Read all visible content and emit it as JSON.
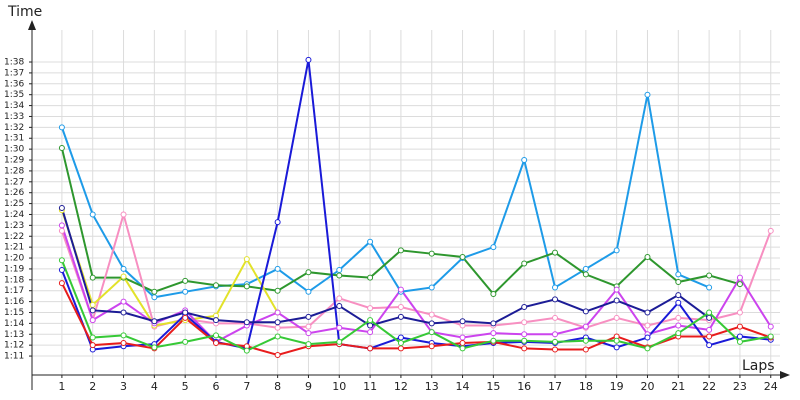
{
  "chart_data": {
    "type": "line",
    "y_label": "Time",
    "x_label": "Laps",
    "x": [
      1,
      2,
      3,
      4,
      5,
      6,
      7,
      8,
      9,
      10,
      11,
      12,
      13,
      14,
      15,
      16,
      17,
      18,
      19,
      20,
      21,
      22,
      23,
      24
    ],
    "xlim": [
      0.03,
      24.3
    ],
    "ylim": [
      69.26,
      100.94
    ],
    "xticks": [
      1,
      2,
      3,
      4,
      5,
      6,
      7,
      8,
      9,
      10,
      11,
      12,
      13,
      14,
      15,
      16,
      17,
      18,
      19,
      20,
      21,
      22,
      23,
      24
    ],
    "yticks": [
      {
        "value": 71,
        "label": "1:11"
      },
      {
        "value": 72,
        "label": "1:12"
      },
      {
        "value": 73,
        "label": "1:13"
      },
      {
        "value": 74,
        "label": "1:14"
      },
      {
        "value": 75,
        "label": "1:15"
      },
      {
        "value": 76,
        "label": "1:16"
      },
      {
        "value": 77,
        "label": "1:17"
      },
      {
        "value": 78,
        "label": "1:18"
      },
      {
        "value": 79,
        "label": "1:19"
      },
      {
        "value": 80,
        "label": "1:20"
      },
      {
        "value": 81,
        "label": "1:21"
      },
      {
        "value": 82,
        "label": "1:22"
      },
      {
        "value": 83,
        "label": "1:23"
      },
      {
        "value": 84,
        "label": "1:24"
      },
      {
        "value": 85,
        "label": "1:25"
      },
      {
        "value": 86,
        "label": "1:26"
      },
      {
        "value": 87,
        "label": "1:27"
      },
      {
        "value": 88,
        "label": "1:28"
      },
      {
        "value": 89,
        "label": "1:29"
      },
      {
        "value": 90,
        "label": "1:30"
      },
      {
        "value": 91,
        "label": "1:31"
      },
      {
        "value": 92,
        "label": "1:32"
      },
      {
        "value": 93,
        "label": "1:33"
      },
      {
        "value": 94,
        "label": "1:34"
      },
      {
        "value": 95,
        "label": "1:35"
      },
      {
        "value": 96,
        "label": "1:36"
      },
      {
        "value": 97,
        "label": "1:37"
      },
      {
        "value": 98,
        "label": "1:38"
      }
    ],
    "grid": true,
    "series": [
      {
        "color": "#1e9be8",
        "values": [
          92,
          84,
          79,
          76.4,
          76.9,
          77.4,
          77.6,
          79,
          76.9,
          78.9,
          81.5,
          76.9,
          77.3,
          80,
          81,
          89,
          77.3,
          79,
          80.7,
          95,
          78.5,
          77.3,
          null,
          null
        ]
      },
      {
        "color": "#2e972e",
        "values": [
          90.1,
          78.2,
          78.2,
          76.9,
          77.9,
          77.5,
          77.4,
          77,
          78.7,
          78.4,
          78.2,
          80.7,
          80.4,
          80.1,
          76.7,
          79.5,
          80.5,
          78.5,
          77.4,
          80.1,
          77.8,
          78.4,
          77.6,
          null
        ]
      },
      {
        "color": "#f78fc1",
        "values": [
          82.5,
          74.3,
          84,
          73.7,
          74.4,
          74,
          74,
          73.6,
          73.7,
          76.3,
          75.4,
          75.5,
          74.8,
          73.8,
          73.8,
          74.1,
          74.5,
          73.6,
          74.5,
          73.8,
          74.5,
          74.3,
          75,
          82.5
        ]
      },
      {
        "color": "#e2e22a",
        "values": [
          84.4,
          75.7,
          78.3,
          73.8,
          74.3,
          74.7,
          79.9,
          75,
          null,
          null,
          null,
          null,
          null,
          null,
          null,
          null,
          null,
          null,
          null,
          null,
          null,
          null,
          null,
          null
        ]
      },
      {
        "color": "#cc44ee",
        "values": [
          83,
          74.3,
          76,
          74,
          75.2,
          72.3,
          73.8,
          75,
          73.1,
          73.6,
          73.2,
          77.1,
          73.2,
          72.7,
          73.1,
          73,
          73,
          73.7,
          77.1,
          73,
          73.8,
          73.4,
          78.2,
          73.7
        ]
      },
      {
        "color": "#1a1ad8",
        "values": [
          78.9,
          71.6,
          71.9,
          72.1,
          74.8,
          72.3,
          71.7,
          83.3,
          98.2,
          72.1,
          71.7,
          72.7,
          72.2,
          71.9,
          72.2,
          72.3,
          72.2,
          72.7,
          71.8,
          72.7,
          75.9,
          72,
          72.8,
          72.5
        ]
      },
      {
        "color": "#1c1c96",
        "values": [
          84.6,
          75.2,
          75,
          74.2,
          75,
          74.3,
          74.1,
          74.1,
          74.6,
          75.6,
          73.8,
          74.6,
          74,
          74.2,
          74,
          75.5,
          76.2,
          75.1,
          76.1,
          75,
          76.6,
          74.5,
          null,
          null
        ]
      },
      {
        "color": "#e81c1c",
        "values": [
          77.7,
          72,
          72.2,
          71.7,
          74.5,
          72.2,
          71.9,
          71.1,
          71.9,
          72.1,
          71.7,
          71.7,
          71.9,
          72.2,
          72.3,
          71.7,
          71.6,
          71.6,
          72.8,
          71.8,
          72.8,
          72.8,
          73.7,
          72.7
        ]
      },
      {
        "color": "#36c936",
        "values": [
          79.8,
          72.7,
          72.9,
          71.8,
          72.3,
          72.9,
          71.5,
          72.8,
          72.1,
          72.3,
          74.3,
          72.2,
          73.2,
          71.7,
          72.4,
          72.4,
          72.3,
          72.4,
          72.4,
          71.7,
          73.1,
          75,
          72.3,
          72.8
        ]
      }
    ]
  }
}
